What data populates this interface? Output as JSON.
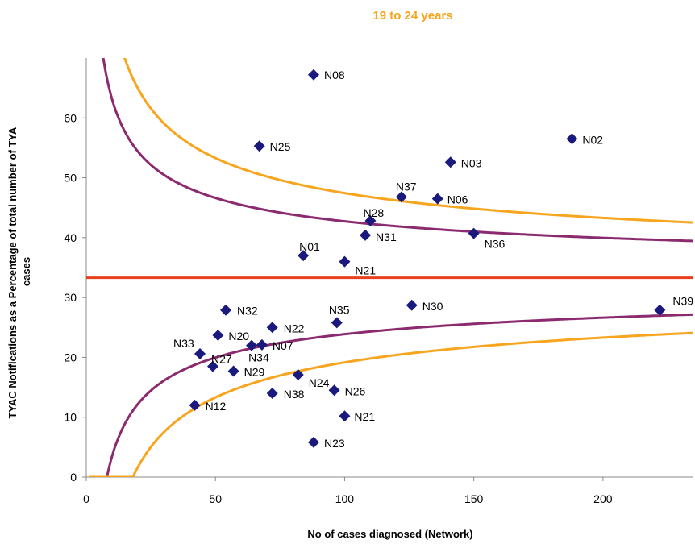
{
  "chart_data": {
    "type": "scatter",
    "title": "19 to 24 years",
    "xlabel": "No of cases diagnosed (Network)",
    "ylabel_lines": [
      "TYAC Notifications as a Percentage of total number of TYA",
      "cases"
    ],
    "xlim": [
      0,
      235
    ],
    "ylim": [
      0,
      70
    ],
    "xticks": [
      0,
      50,
      100,
      150,
      200
    ],
    "yticks": [
      0,
      10,
      20,
      30,
      40,
      50,
      60
    ],
    "grid": false,
    "mean_line": {
      "y": 33.3,
      "color": "#e8401c"
    },
    "control_limits": {
      "inner": {
        "color": "#8b2a6e",
        "z": 2
      },
      "outer": {
        "color": "#f7a51e",
        "z": 3
      }
    },
    "marker_color": "#1a1a7e",
    "title_color": "#f7a51e",
    "points": [
      {
        "label": "N08",
        "x": 88,
        "y": 67.2
      },
      {
        "label": "N25",
        "x": 67,
        "y": 55.3
      },
      {
        "label": "N02",
        "x": 188,
        "y": 56.5
      },
      {
        "label": "N03",
        "x": 141,
        "y": 52.6
      },
      {
        "label": "N37",
        "x": 122,
        "y": 46.8
      },
      {
        "label": "N06",
        "x": 136,
        "y": 46.5
      },
      {
        "label": "N28",
        "x": 110,
        "y": 42.8
      },
      {
        "label": "N31",
        "x": 108,
        "y": 40.4
      },
      {
        "label": "N36",
        "x": 150,
        "y": 40.7
      },
      {
        "label": "N01",
        "x": 84,
        "y": 37.0
      },
      {
        "label": "N21",
        "x": 100,
        "y": 36.0
      },
      {
        "label": "N39",
        "x": 222,
        "y": 27.9
      },
      {
        "label": "N32",
        "x": 54,
        "y": 27.9
      },
      {
        "label": "N30",
        "x": 126,
        "y": 28.7
      },
      {
        "label": "N35",
        "x": 97,
        "y": 25.8
      },
      {
        "label": "N22",
        "x": 72,
        "y": 25.0
      },
      {
        "label": "N20",
        "x": 51,
        "y": 23.7
      },
      {
        "label": "N34",
        "x": 64,
        "y": 22.0
      },
      {
        "label": "N07",
        "x": 68,
        "y": 22.1
      },
      {
        "label": "N33",
        "x": 44,
        "y": 20.6
      },
      {
        "label": "N27",
        "x": 49,
        "y": 18.5
      },
      {
        "label": "N29",
        "x": 57,
        "y": 17.7
      },
      {
        "label": "N24",
        "x": 82,
        "y": 17.1
      },
      {
        "label": "N26",
        "x": 96,
        "y": 14.5
      },
      {
        "label": "N38",
        "x": 72,
        "y": 14.0
      },
      {
        "label": "N12",
        "x": 42,
        "y": 12.0
      },
      {
        "label": "N21",
        "x": 100,
        "y": 10.2
      },
      {
        "label": "N23",
        "x": 88,
        "y": 5.8
      }
    ]
  }
}
